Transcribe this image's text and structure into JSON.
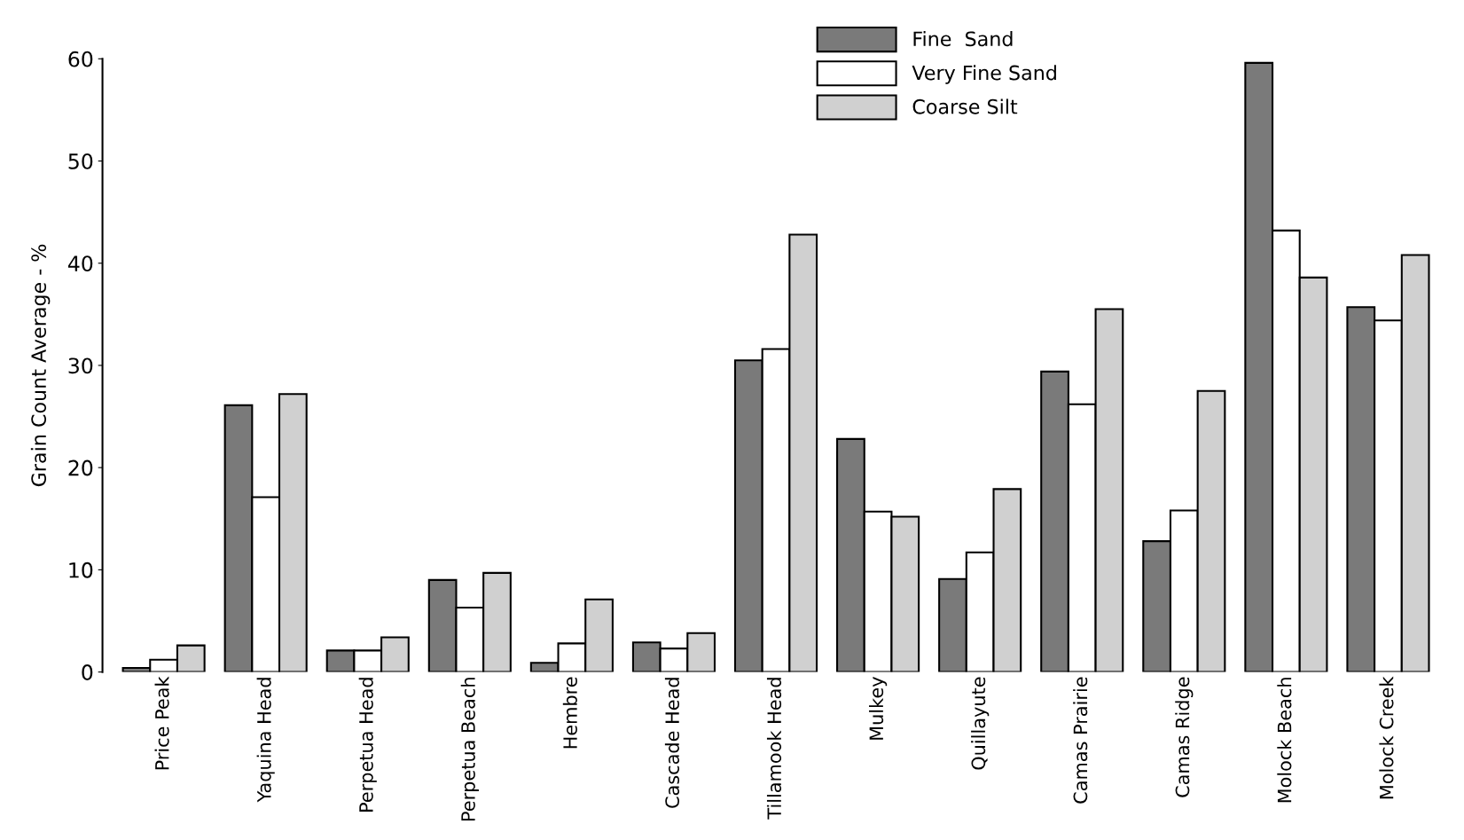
{
  "chart_data": {
    "type": "bar",
    "ylabel": "Grain Count Average - %",
    "categories": [
      "Price Peak",
      "Yaquina Head",
      "Perpetua Head",
      "Perpetua Beach",
      "Hembre",
      "Cascade Head",
      "Tillamook Head",
      "Mulkey",
      "Quillayute",
      "Camas Prairie",
      "Camas Ridge",
      "Molock Beach",
      "Molock Creek"
    ],
    "series": [
      {
        "name": "Fine  Sand",
        "color": "#7a7a7a",
        "values": [
          0.4,
          26.1,
          2.1,
          9.0,
          0.9,
          2.9,
          30.5,
          22.8,
          9.1,
          29.4,
          12.8,
          59.6,
          35.7
        ]
      },
      {
        "name": "Very Fine Sand",
        "color": "#ffffff",
        "values": [
          1.2,
          17.1,
          2.1,
          6.3,
          2.8,
          2.3,
          31.6,
          15.7,
          11.7,
          26.2,
          15.8,
          43.2,
          34.4
        ]
      },
      {
        "name": "Coarse Silt",
        "color": "#d0d0d0",
        "values": [
          2.6,
          27.2,
          3.4,
          9.7,
          7.1,
          3.8,
          42.8,
          15.2,
          17.9,
          35.5,
          27.5,
          38.6,
          40.8
        ]
      }
    ],
    "ylim": [
      0,
      60
    ],
    "yticks": [
      0,
      10,
      20,
      30,
      40,
      50,
      60
    ],
    "grid": false,
    "legend": "top"
  }
}
